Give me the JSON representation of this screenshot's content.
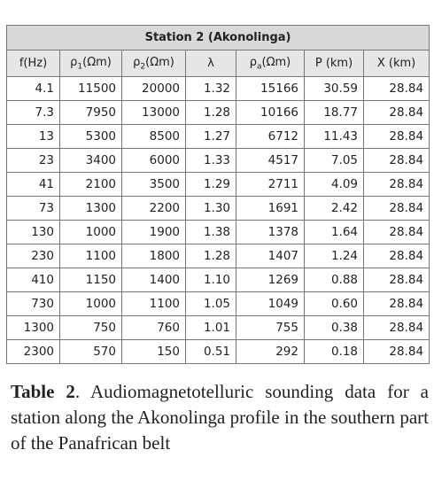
{
  "table": {
    "title": "Station 2 (Akonolinga)",
    "headers": [
      {
        "text": "f(Hz)"
      },
      {
        "text": "ρ",
        "sub": "1",
        "rest": "(Ωm)"
      },
      {
        "text": "ρ",
        "sub": "2",
        "rest": "(Ωm)"
      },
      {
        "text": "λ"
      },
      {
        "text": "ρ",
        "sub": "a",
        "rest": "(Ωm)"
      },
      {
        "text": "P (km)"
      },
      {
        "text": "X (km)"
      }
    ],
    "rows": [
      [
        "4.1",
        "11500",
        "20000",
        "1.32",
        "15166",
        "30.59",
        "28.84"
      ],
      [
        "7.3",
        "7950",
        "13000",
        "1.28",
        "10166",
        "18.77",
        "28.84"
      ],
      [
        "13",
        "5300",
        "8500",
        "1.27",
        "6712",
        "11.43",
        "28.84"
      ],
      [
        "23",
        "3400",
        "6000",
        "1.33",
        "4517",
        "7.05",
        "28.84"
      ],
      [
        "41",
        "2100",
        "3500",
        "1.29",
        "2711",
        "4.09",
        "28.84"
      ],
      [
        "73",
        "1300",
        "2200",
        "1.30",
        "1691",
        "2.42",
        "28.84"
      ],
      [
        "130",
        "1000",
        "1900",
        "1.38",
        "1378",
        "1.64",
        "28.84"
      ],
      [
        "230",
        "1100",
        "1800",
        "1.28",
        "1407",
        "1.24",
        "28.84"
      ],
      [
        "410",
        "1150",
        "1400",
        "1.10",
        "1269",
        "0.88",
        "28.84"
      ],
      [
        "730",
        "1000",
        "1100",
        "1.05",
        "1049",
        "0.60",
        "28.84"
      ],
      [
        "1300",
        "750",
        "760",
        "1.01",
        "755",
        "0.38",
        "28.84"
      ],
      [
        "2300",
        "570",
        "150",
        "0.51",
        "292",
        "0.18",
        "28.84"
      ]
    ]
  },
  "caption": {
    "label": "Table 2",
    "text": ". Audiomagnetotelluric sounding data for a station along the Akonolinga profile in the southern part of the Panafrican belt"
  }
}
